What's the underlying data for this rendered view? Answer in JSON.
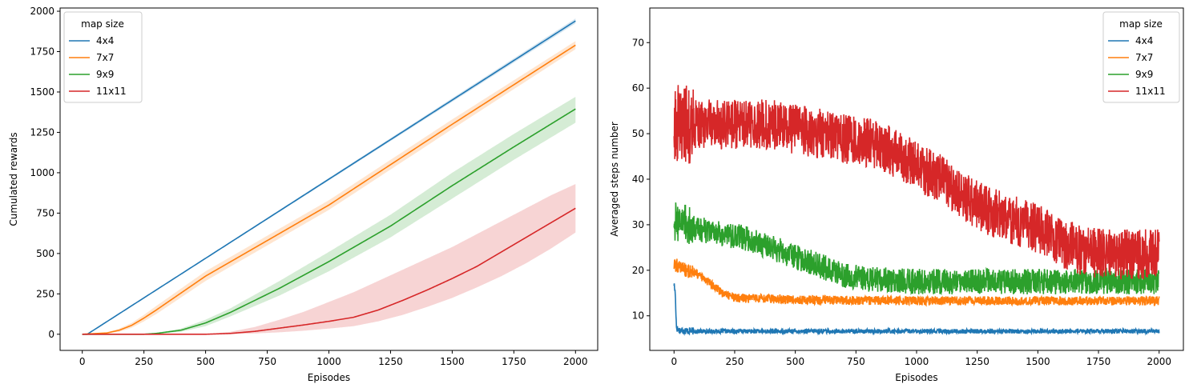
{
  "colors": {
    "4x4": "#1f77b4",
    "7x7": "#ff7f0e",
    "9x9": "#2ca02c",
    "11x11": "#d62728"
  },
  "chart_data": [
    {
      "type": "line",
      "xlabel": "Episodes",
      "ylabel": "Cumulated rewards",
      "xlim": [
        -90,
        2090
      ],
      "ylim": [
        -100,
        2020
      ],
      "xticks": [
        0,
        250,
        500,
        750,
        1000,
        1250,
        1500,
        1750,
        2000
      ],
      "yticks": [
        0,
        250,
        500,
        750,
        1000,
        1250,
        1500,
        1750,
        2000
      ],
      "grid": false,
      "legend": {
        "title": "map size",
        "placement": "top-left"
      },
      "series": [
        {
          "name": "4x4",
          "x": [
            0,
            20,
            2000
          ],
          "y": [
            0,
            0,
            1940
          ],
          "lower": [
            0,
            0,
            1925
          ],
          "upper": [
            0,
            0,
            1955
          ]
        },
        {
          "name": "7x7",
          "x": [
            0,
            100,
            150,
            200,
            250,
            300,
            500,
            1000,
            1500,
            2000
          ],
          "y": [
            0,
            8,
            25,
            55,
            100,
            150,
            360,
            800,
            1300,
            1790
          ],
          "lower": [
            0,
            4,
            15,
            40,
            80,
            125,
            330,
            770,
            1270,
            1765
          ],
          "upper": [
            0,
            12,
            35,
            70,
            120,
            175,
            390,
            830,
            1330,
            1815
          ]
        },
        {
          "name": "9x9",
          "x": [
            0,
            250,
            300,
            400,
            500,
            600,
            700,
            800,
            1000,
            1250,
            1500,
            1750,
            2000
          ],
          "y": [
            0,
            0,
            5,
            25,
            70,
            135,
            210,
            285,
            450,
            670,
            920,
            1160,
            1395
          ],
          "lower": [
            0,
            0,
            2,
            15,
            50,
            110,
            175,
            240,
            390,
            600,
            840,
            1080,
            1310
          ],
          "upper": [
            0,
            0,
            8,
            35,
            90,
            160,
            245,
            330,
            510,
            740,
            1000,
            1240,
            1470
          ]
        },
        {
          "name": "11x11",
          "x": [
            0,
            500,
            600,
            700,
            800,
            900,
            1000,
            1100,
            1200,
            1300,
            1400,
            1500,
            1600,
            1700,
            1800,
            1900,
            2000
          ],
          "y": [
            0,
            0,
            5,
            18,
            38,
            58,
            80,
            105,
            150,
            210,
            275,
            345,
            420,
            510,
            600,
            690,
            780
          ],
          "lower": [
            0,
            0,
            1,
            5,
            12,
            22,
            35,
            50,
            80,
            120,
            170,
            225,
            290,
            360,
            440,
            530,
            630
          ],
          "upper": [
            0,
            0,
            15,
            45,
            90,
            140,
            200,
            260,
            330,
            400,
            470,
            540,
            620,
            700,
            780,
            860,
            930
          ]
        }
      ]
    },
    {
      "type": "line",
      "xlabel": "Episodes",
      "ylabel": "Averaged steps number",
      "xlim": [
        -100,
        2100
      ],
      "ylim": [
        2.4,
        77.6
      ],
      "xticks": [
        0,
        250,
        500,
        750,
        1000,
        1250,
        1500,
        1750,
        2000
      ],
      "yticks": [
        10,
        20,
        30,
        40,
        50,
        60,
        70
      ],
      "grid": false,
      "legend": {
        "title": "map size",
        "placement": "top-right"
      },
      "series": [
        {
          "name": "4x4",
          "x": [
            0,
            5,
            10,
            15,
            25,
            50,
            100,
            200,
            500,
            1000,
            1500,
            2000
          ],
          "y": [
            17,
            15,
            7.5,
            7,
            6.8,
            6.7,
            6.6,
            6.6,
            6.6,
            6.6,
            6.6,
            6.6
          ],
          "noise": 0.5
        },
        {
          "name": "7x7",
          "x": [
            0,
            25,
            50,
            100,
            150,
            200,
            250,
            300,
            500,
            1000,
            1500,
            2000
          ],
          "y": [
            21,
            21,
            20,
            19,
            17,
            15,
            14,
            13.8,
            13.5,
            13.3,
            13.3,
            13.3
          ],
          "noise": 1.0
        },
        {
          "name": "9x9",
          "x": [
            0,
            50,
            100,
            200,
            300,
            400,
            500,
            600,
            700,
            800,
            1000,
            1500,
            2000
          ],
          "y": [
            31,
            30,
            29,
            28,
            27,
            25,
            23,
            21,
            19,
            18,
            17.5,
            17.5,
            17.5
          ],
          "noise": 2.8
        },
        {
          "name": "11x11",
          "x": [
            0,
            100,
            200,
            300,
            400,
            500,
            600,
            700,
            800,
            900,
            1000,
            1100,
            1200,
            1300,
            1400,
            1500,
            1600,
            1700,
            1800,
            2000
          ],
          "y": [
            52,
            52,
            52,
            52,
            52,
            51,
            50,
            49,
            48,
            46,
            43,
            40,
            36,
            33,
            31,
            29,
            26,
            24,
            23.5,
            23.5
          ],
          "noise": 5.5
        }
      ]
    }
  ]
}
